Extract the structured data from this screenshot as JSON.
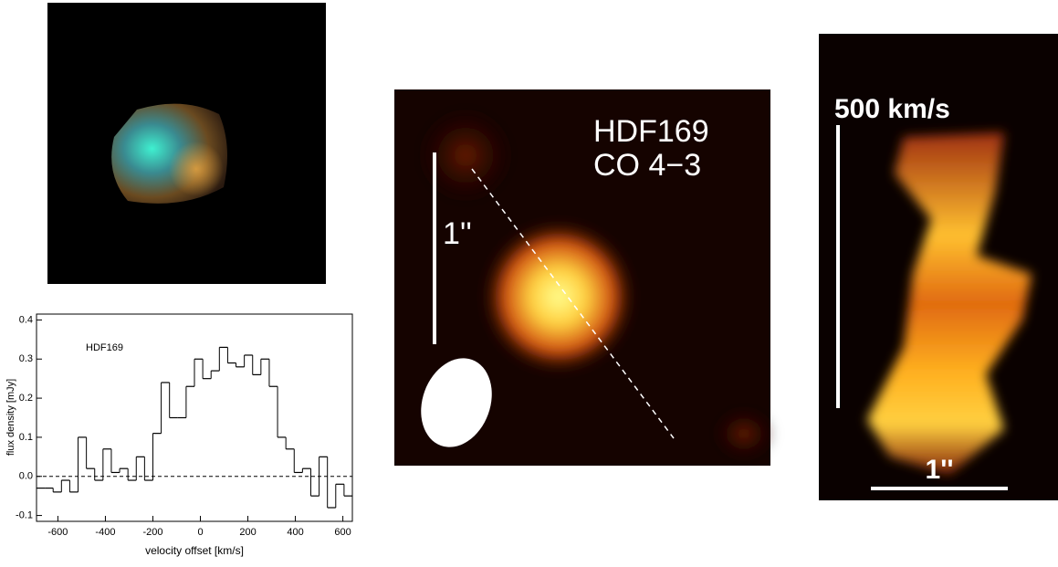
{
  "chart_data": {
    "type": "histogram",
    "annotation": "HDF169",
    "x_label": "velocity offset [km/s]",
    "y_label": "flux density [mJy]",
    "bins": [
      -690,
      -655,
      -620,
      -585,
      -550,
      -515,
      -480,
      -445,
      -410,
      -375,
      -340,
      -305,
      -270,
      -235,
      -200,
      -165,
      -130,
      -95,
      -60,
      -25,
      10,
      45,
      80,
      115,
      150,
      185,
      220,
      255,
      290,
      325,
      360,
      395,
      430,
      465,
      500,
      535,
      570,
      605,
      640
    ],
    "values": [
      -0.03,
      -0.03,
      -0.04,
      -0.01,
      -0.04,
      0.1,
      0.02,
      -0.01,
      0.07,
      0.01,
      0.02,
      -0.01,
      0.05,
      -0.01,
      0.11,
      0.24,
      0.15,
      0.15,
      0.23,
      0.3,
      0.25,
      0.27,
      0.33,
      0.29,
      0.28,
      0.31,
      0.26,
      0.3,
      0.23,
      0.1,
      0.07,
      0.01,
      0.02,
      -0.05,
      0.05,
      -0.08,
      -0.02,
      -0.05
    ],
    "color": "#000000",
    "xlim": [
      -690,
      640
    ],
    "ylim": [
      -0.115,
      0.415
    ],
    "xticks": [
      -600,
      -400,
      -200,
      0,
      200,
      400,
      600
    ],
    "yticks": [
      -0.1,
      {
        "value": 0,
        "label": "0.0"
      },
      0.1,
      0.2,
      0.3,
      0.4
    ]
  },
  "map_panel": {
    "source": "HDF169",
    "line": "CO 4−3",
    "scale": "1''"
  },
  "pv_panel": {
    "velocity_scale": "500 km/s",
    "scale": "1''"
  }
}
